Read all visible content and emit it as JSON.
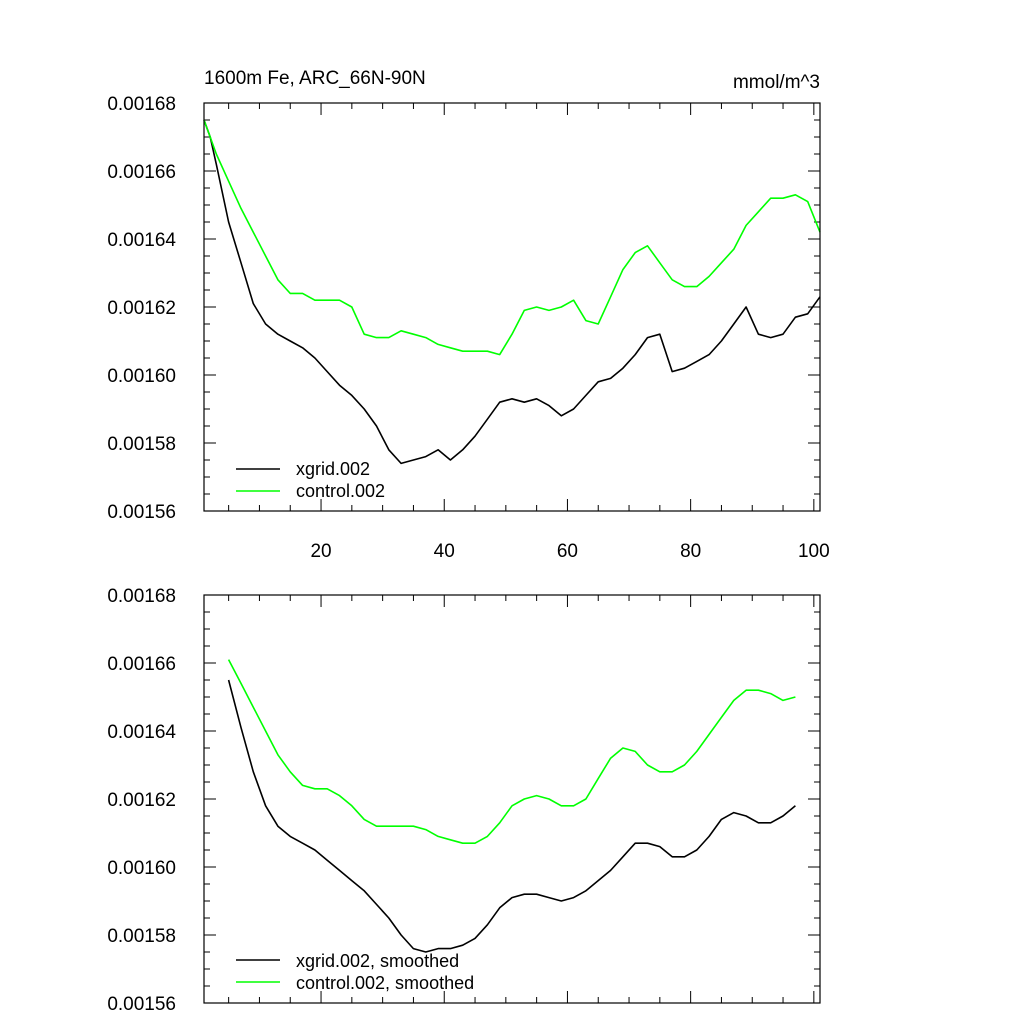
{
  "chart_data": [
    {
      "type": "line",
      "title": "1600m Fe, ARC_66N-90N",
      "units": "mmol/m^3",
      "xlim": [
        1,
        101
      ],
      "ylim": [
        0.00156,
        0.00168
      ],
      "yticks": [
        0.00156,
        0.00158,
        0.0016,
        0.00162,
        0.00164,
        0.00166,
        0.00168
      ],
      "ytick_labels": [
        "0.00156",
        "0.00158",
        "0.00160",
        "0.00162",
        "0.00164",
        "0.00166",
        "0.00168"
      ],
      "xticks": [
        20,
        40,
        60,
        80,
        100
      ],
      "xtick_labels": [
        "20",
        "40",
        "60",
        "80",
        "100"
      ],
      "legend_location": "bottom-left",
      "series": [
        {
          "name": "xgrid.002",
          "color": "#000000",
          "x": [
            1,
            2,
            3,
            5,
            7,
            9,
            11,
            13,
            15,
            17,
            19,
            21,
            23,
            25,
            27,
            29,
            31,
            33,
            35,
            37,
            39,
            41,
            43,
            45,
            47,
            49,
            51,
            53,
            55,
            57,
            59,
            61,
            63,
            65,
            67,
            69,
            71,
            73,
            75,
            77,
            79,
            81,
            83,
            85,
            87,
            89,
            91,
            93,
            95,
            97,
            99,
            101
          ],
          "values": [
            0.001675,
            0.00167,
            0.001662,
            0.001645,
            0.001633,
            0.001621,
            0.001615,
            0.001612,
            0.00161,
            0.001608,
            0.001605,
            0.001601,
            0.001597,
            0.001594,
            0.00159,
            0.001585,
            0.001578,
            0.001574,
            0.001575,
            0.001576,
            0.001578,
            0.001575,
            0.001578,
            0.001582,
            0.001587,
            0.001592,
            0.001593,
            0.001592,
            0.001593,
            0.001591,
            0.001588,
            0.00159,
            0.001594,
            0.001598,
            0.001599,
            0.001602,
            0.001606,
            0.001611,
            0.001612,
            0.001601,
            0.001602,
            0.001604,
            0.001606,
            0.00161,
            0.001615,
            0.00162,
            0.001612,
            0.001611,
            0.001612,
            0.001617,
            0.001618,
            0.001623
          ]
        },
        {
          "name": "control.002",
          "color": "#00ff00",
          "x": [
            1,
            2,
            3,
            5,
            7,
            9,
            11,
            13,
            15,
            17,
            19,
            21,
            23,
            25,
            27,
            29,
            31,
            33,
            35,
            37,
            39,
            41,
            43,
            45,
            47,
            49,
            51,
            53,
            55,
            57,
            59,
            61,
            63,
            65,
            67,
            69,
            71,
            73,
            75,
            77,
            79,
            81,
            83,
            85,
            87,
            89,
            91,
            93,
            95,
            97,
            99,
            101
          ],
          "values": [
            0.001675,
            0.00167,
            0.001665,
            0.001657,
            0.001649,
            0.001642,
            0.001635,
            0.001628,
            0.001624,
            0.001624,
            0.001622,
            0.001622,
            0.001622,
            0.00162,
            0.001612,
            0.001611,
            0.001611,
            0.001613,
            0.001612,
            0.001611,
            0.001609,
            0.001608,
            0.001607,
            0.001607,
            0.001607,
            0.001606,
            0.001612,
            0.001619,
            0.00162,
            0.001619,
            0.00162,
            0.001622,
            0.001616,
            0.001615,
            0.001623,
            0.001631,
            0.001636,
            0.001638,
            0.001633,
            0.001628,
            0.001626,
            0.001626,
            0.001629,
            0.001633,
            0.001637,
            0.001644,
            0.001648,
            0.001652,
            0.001652,
            0.001653,
            0.001651,
            0.001642
          ]
        }
      ]
    },
    {
      "type": "line",
      "title": "",
      "units": "",
      "xlim": [
        1,
        101
      ],
      "ylim": [
        0.00156,
        0.00168
      ],
      "yticks": [
        0.00156,
        0.00158,
        0.0016,
        0.00162,
        0.00164,
        0.00166,
        0.00168
      ],
      "ytick_labels": [
        "0.00156",
        "0.00158",
        "0.00160",
        "0.00162",
        "0.00164",
        "0.00166",
        "0.00168"
      ],
      "xticks": [
        20,
        40,
        60,
        80,
        100
      ],
      "xtick_labels": [],
      "legend_location": "bottom-left",
      "series": [
        {
          "name": "xgrid.002, smoothed",
          "color": "#000000",
          "x": [
            5,
            7,
            9,
            11,
            13,
            15,
            17,
            19,
            21,
            23,
            25,
            27,
            29,
            31,
            33,
            35,
            37,
            39,
            41,
            43,
            45,
            47,
            49,
            51,
            53,
            55,
            57,
            59,
            61,
            63,
            65,
            67,
            69,
            71,
            73,
            75,
            77,
            79,
            81,
            83,
            85,
            87,
            89,
            91,
            93,
            95,
            97
          ],
          "values": [
            0.001655,
            0.001641,
            0.001628,
            0.001618,
            0.001612,
            0.001609,
            0.001607,
            0.001605,
            0.001602,
            0.001599,
            0.001596,
            0.001593,
            0.001589,
            0.001585,
            0.00158,
            0.001576,
            0.001575,
            0.001576,
            0.001576,
            0.001577,
            0.001579,
            0.001583,
            0.001588,
            0.001591,
            0.001592,
            0.001592,
            0.001591,
            0.00159,
            0.001591,
            0.001593,
            0.001596,
            0.001599,
            0.001603,
            0.001607,
            0.001607,
            0.001606,
            0.001603,
            0.001603,
            0.001605,
            0.001609,
            0.001614,
            0.001616,
            0.001615,
            0.001613,
            0.001613,
            0.001615,
            0.001618
          ]
        },
        {
          "name": "control.002, smoothed",
          "color": "#00ff00",
          "x": [
            5,
            7,
            9,
            11,
            13,
            15,
            17,
            19,
            21,
            23,
            25,
            27,
            29,
            31,
            33,
            35,
            37,
            39,
            41,
            43,
            45,
            47,
            49,
            51,
            53,
            55,
            57,
            59,
            61,
            63,
            65,
            67,
            69,
            71,
            73,
            75,
            77,
            79,
            81,
            83,
            85,
            87,
            89,
            91,
            93,
            95,
            97
          ],
          "values": [
            0.001661,
            0.001654,
            0.001647,
            0.00164,
            0.001633,
            0.001628,
            0.001624,
            0.001623,
            0.001623,
            0.001621,
            0.001618,
            0.001614,
            0.001612,
            0.001612,
            0.001612,
            0.001612,
            0.001611,
            0.001609,
            0.001608,
            0.001607,
            0.001607,
            0.001609,
            0.001613,
            0.001618,
            0.00162,
            0.001621,
            0.00162,
            0.001618,
            0.001618,
            0.00162,
            0.001626,
            0.001632,
            0.001635,
            0.001634,
            0.00163,
            0.001628,
            0.001628,
            0.00163,
            0.001634,
            0.001639,
            0.001644,
            0.001649,
            0.001652,
            0.001652,
            0.001651,
            0.001649,
            0.00165
          ]
        }
      ]
    }
  ]
}
